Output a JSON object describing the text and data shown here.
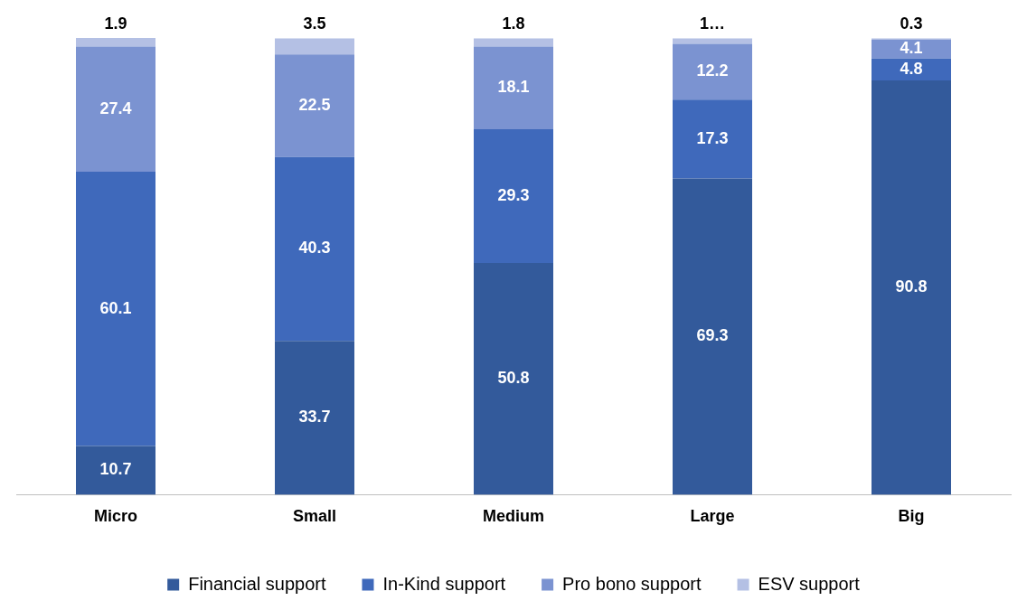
{
  "chart_data": {
    "type": "bar",
    "stacked": true,
    "categories": [
      "Micro",
      "Small",
      "Medium",
      "Large",
      "Big"
    ],
    "series": [
      {
        "name": "Financial support",
        "color": "#335a9b",
        "values": [
          10.7,
          33.7,
          50.8,
          69.3,
          90.8
        ]
      },
      {
        "name": "In-Kind support",
        "color": "#3f69bb",
        "values": [
          60.1,
          40.3,
          29.3,
          17.3,
          4.8
        ]
      },
      {
        "name": "Pro bono support",
        "color": "#7b93d1",
        "values": [
          27.4,
          22.5,
          18.1,
          12.2,
          4.1
        ]
      },
      {
        "name": "ESV support",
        "color": "#b4c0e4",
        "values": [
          1.9,
          3.5,
          1.8,
          1.2,
          0.3
        ],
        "value_labels": [
          "1.9",
          "3.5",
          "1.8",
          "1…",
          "0.3"
        ]
      }
    ],
    "data_labels": true,
    "legend": "bottom",
    "grid": false
  }
}
